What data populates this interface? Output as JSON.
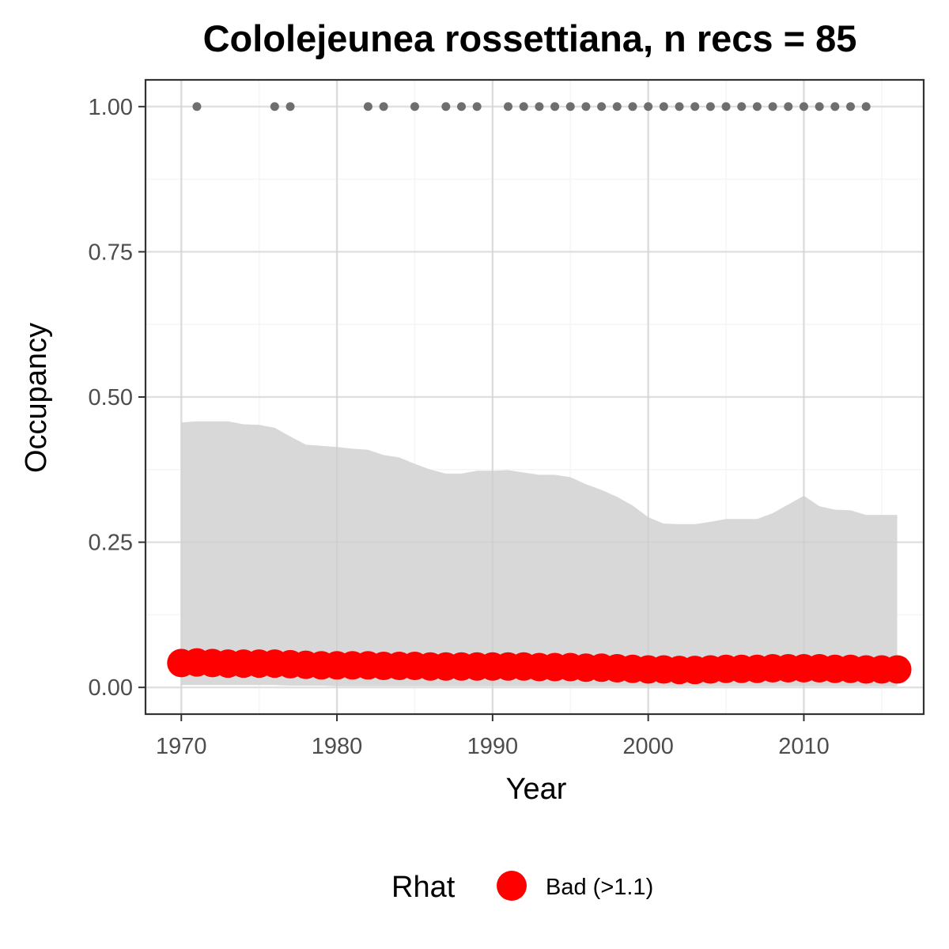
{
  "chart_data": {
    "type": "area",
    "title": "Cololejeunea rossettiana, n recs = 85",
    "xlabel": "Year",
    "ylabel": "Occupancy",
    "xlim": [
      1967.7,
      2017.7
    ],
    "ylim": [
      -0.046,
      1.046
    ],
    "x_ticks": [
      1970,
      1980,
      1990,
      2000,
      2010
    ],
    "x_tick_labels": [
      "1970",
      "1980",
      "1990",
      "2000",
      "2010"
    ],
    "y_ticks": [
      0,
      0.25,
      0.5,
      0.75,
      1.0
    ],
    "y_tick_labels": [
      "0.00",
      "0.25",
      "0.50",
      "0.75",
      "1.00"
    ],
    "grid": true,
    "years": [
      1970,
      1971,
      1972,
      1973,
      1974,
      1975,
      1976,
      1977,
      1978,
      1979,
      1980,
      1981,
      1982,
      1983,
      1984,
      1985,
      1986,
      1987,
      1988,
      1989,
      1990,
      1991,
      1992,
      1993,
      1994,
      1995,
      1996,
      1997,
      1998,
      1999,
      2000,
      2001,
      2002,
      2003,
      2004,
      2005,
      2006,
      2007,
      2008,
      2009,
      2010,
      2011,
      2012,
      2013,
      2014,
      2015,
      2016
    ],
    "ribbon_upper": [
      0.456,
      0.458,
      0.458,
      0.458,
      0.453,
      0.452,
      0.447,
      0.432,
      0.418,
      0.416,
      0.414,
      0.411,
      0.409,
      0.4,
      0.396,
      0.385,
      0.375,
      0.368,
      0.368,
      0.373,
      0.373,
      0.374,
      0.37,
      0.366,
      0.366,
      0.362,
      0.35,
      0.34,
      0.328,
      0.313,
      0.293,
      0.282,
      0.281,
      0.281,
      0.285,
      0.29,
      0.29,
      0.29,
      0.3,
      0.315,
      0.33,
      0.312,
      0.306,
      0.305,
      0.297,
      0.297,
      0.297
    ],
    "ribbon_lower": [
      0.004,
      0.004,
      0.004,
      0.004,
      0.004,
      0.004,
      0.004,
      0.003,
      0.003,
      0.003,
      0.002,
      0.002,
      0.002,
      0.002,
      0.002,
      0.002,
      0.002,
      0.002,
      0.002,
      0.002,
      0.002,
      0.002,
      0.002,
      0.002,
      0.002,
      0.002,
      0.002,
      0.002,
      0.002,
      0.002,
      0.002,
      0.002,
      0.002,
      0.002,
      0.002,
      0.002,
      0.002,
      0.002,
      0.002,
      0.002,
      0.002,
      0.002,
      0.002,
      0.002,
      0.002,
      0.002,
      0.002
    ],
    "mean_occupancy": [
      0.042,
      0.043,
      0.042,
      0.041,
      0.041,
      0.041,
      0.041,
      0.04,
      0.039,
      0.038,
      0.038,
      0.038,
      0.038,
      0.037,
      0.037,
      0.037,
      0.036,
      0.036,
      0.036,
      0.036,
      0.036,
      0.036,
      0.036,
      0.035,
      0.035,
      0.035,
      0.034,
      0.034,
      0.033,
      0.032,
      0.031,
      0.031,
      0.03,
      0.03,
      0.031,
      0.032,
      0.032,
      0.032,
      0.033,
      0.033,
      0.033,
      0.033,
      0.032,
      0.032,
      0.031,
      0.031,
      0.031
    ],
    "record_years": [
      1971,
      1976,
      1977,
      1982,
      1983,
      1985,
      1987,
      1988,
      1989,
      1991,
      1992,
      1993,
      1994,
      1995,
      1996,
      1997,
      1998,
      1999,
      2000,
      2001,
      2002,
      2003,
      2004,
      2005,
      2006,
      2007,
      2008,
      2009,
      2010,
      2011,
      2012,
      2013,
      2014
    ],
    "record_value": 1,
    "legend": {
      "title": "Rhat",
      "entries": [
        {
          "label": "Bad (>1.1)",
          "color": "#ff0000"
        }
      ],
      "position": "bottom"
    },
    "colors": {
      "ribbon": "#d6d6d6",
      "points": "#ff0000",
      "records": "#6e6e6e",
      "grid_major": "#ebebeb",
      "grid_minor": "#f5f5f5",
      "panel_border": "#333333"
    }
  }
}
